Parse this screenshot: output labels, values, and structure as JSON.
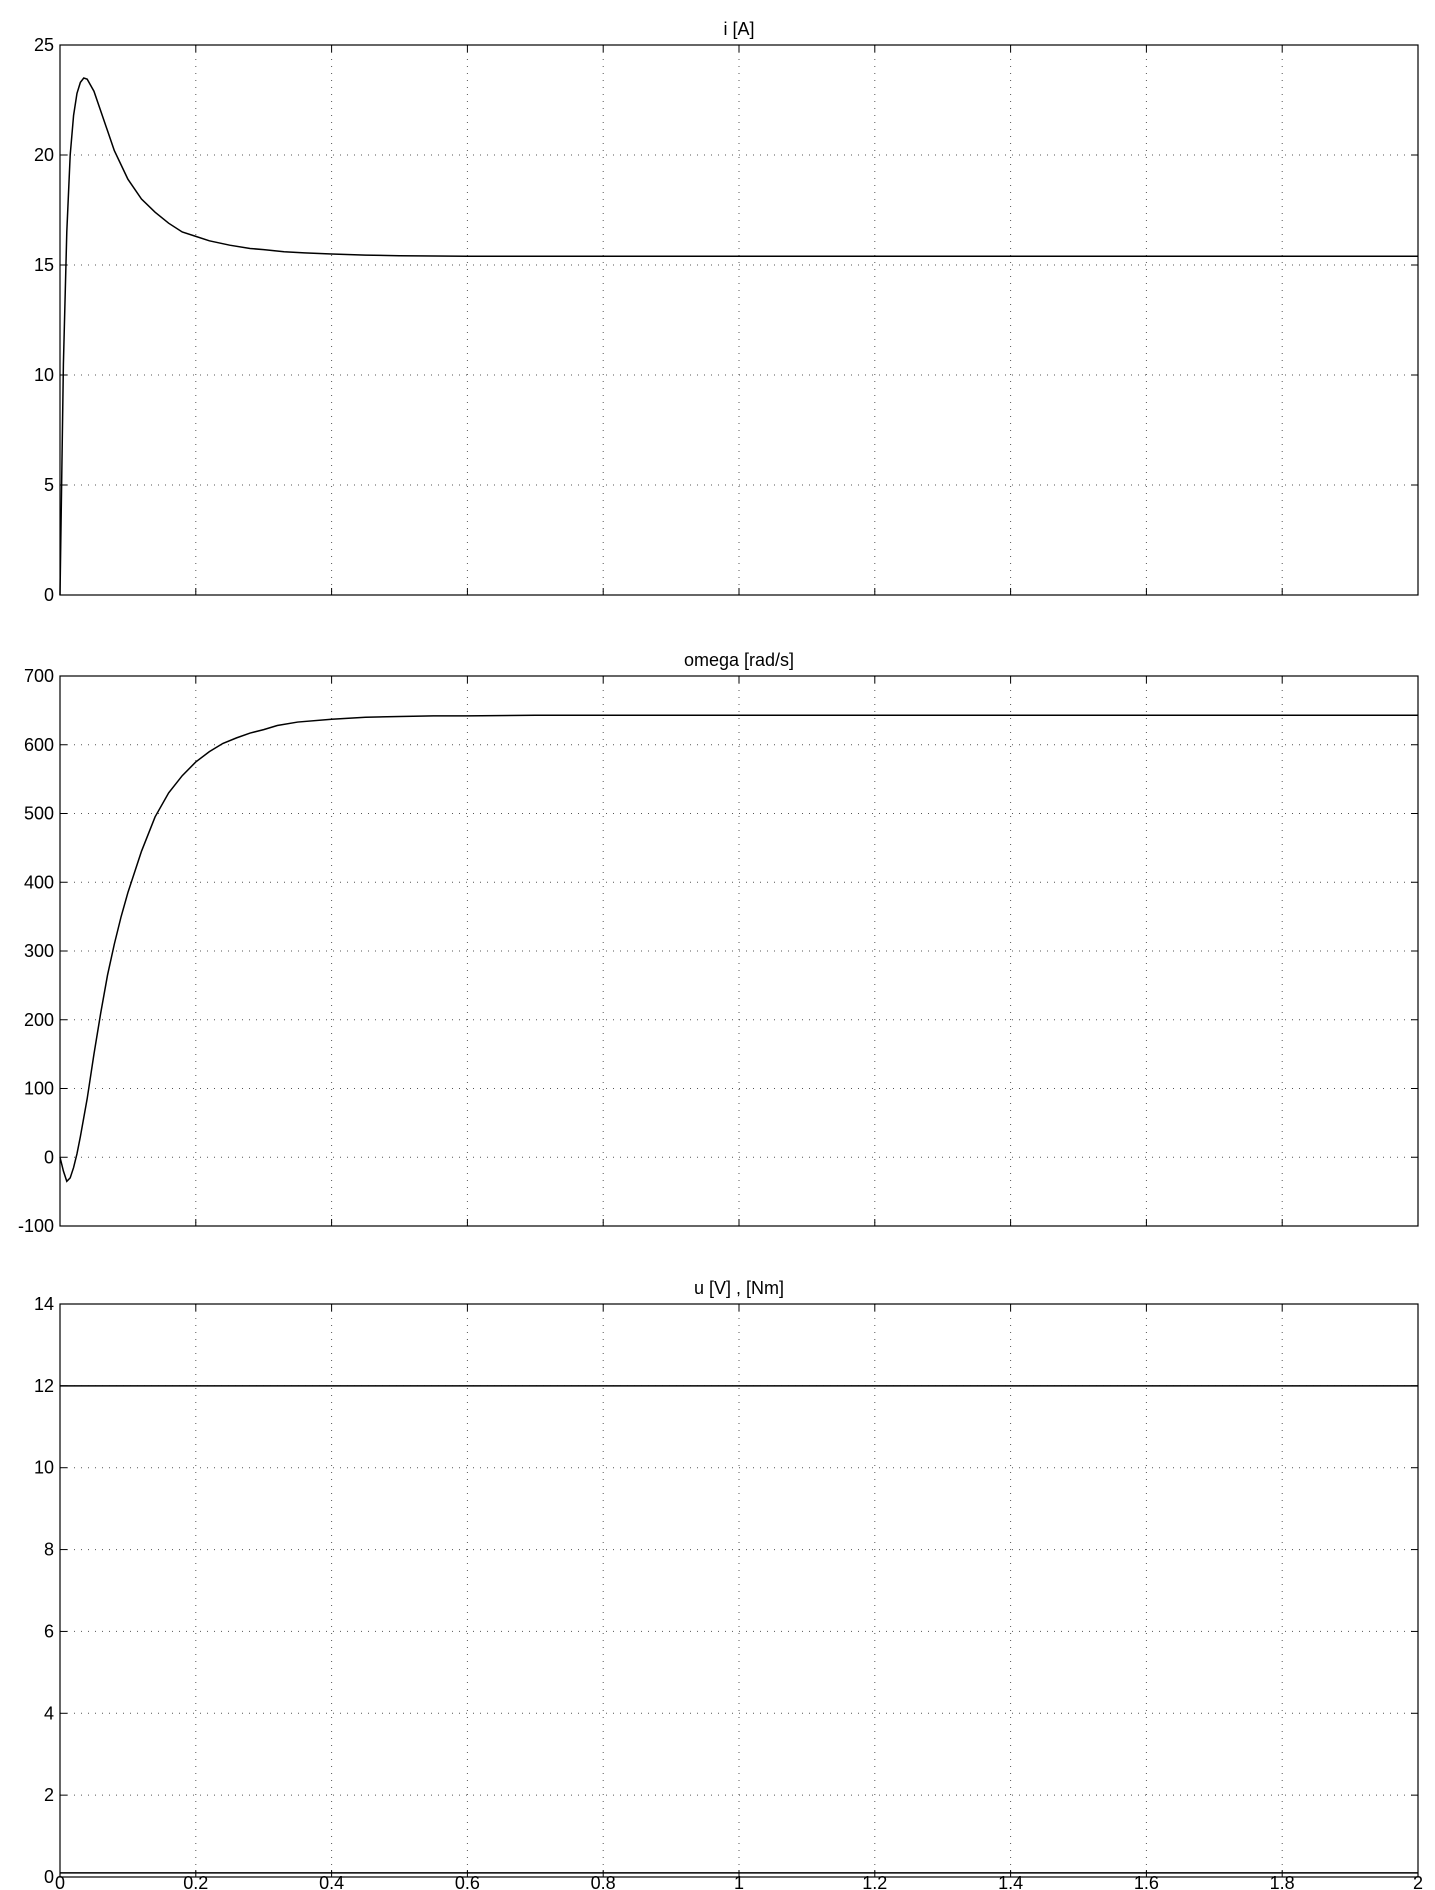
{
  "chart_data": [
    {
      "type": "line",
      "title": "i [A]",
      "xlabel": "",
      "ylabel": "",
      "xlim": [
        0,
        2
      ],
      "ylim": [
        0,
        25
      ],
      "xticks": [
        0,
        0.2,
        0.4,
        0.6,
        0.8,
        1,
        1.2,
        1.4,
        1.6,
        1.8,
        2
      ],
      "yticks": [
        0,
        5,
        10,
        15,
        20,
        25
      ],
      "show_x_tick_labels": false,
      "grid": true,
      "series": [
        {
          "x": [
            0,
            0.005,
            0.01,
            0.015,
            0.02,
            0.025,
            0.03,
            0.035,
            0.04,
            0.05,
            0.06,
            0.07,
            0.08,
            0.1,
            0.12,
            0.14,
            0.16,
            0.18,
            0.2,
            0.22,
            0.25,
            0.28,
            0.3,
            0.33,
            0.36,
            0.4,
            0.45,
            0.5,
            0.55,
            0.6,
            0.7,
            0.8,
            1.0,
            1.2,
            1.4,
            1.6,
            1.8,
            2.0
          ],
          "y": [
            0,
            10.5,
            16.5,
            20.0,
            21.8,
            22.8,
            23.3,
            23.5,
            23.45,
            22.9,
            22.0,
            21.1,
            20.2,
            18.9,
            18.0,
            17.4,
            16.9,
            16.5,
            16.3,
            16.1,
            15.9,
            15.75,
            15.7,
            15.6,
            15.55,
            15.5,
            15.45,
            15.42,
            15.41,
            15.4,
            15.4,
            15.4,
            15.4,
            15.4,
            15.4,
            15.4,
            15.4,
            15.4
          ]
        }
      ]
    },
    {
      "type": "line",
      "title": "omega [rad/s]",
      "xlabel": "",
      "ylabel": "",
      "xlim": [
        0,
        2
      ],
      "ylim": [
        -100,
        700
      ],
      "xticks": [
        0,
        0.2,
        0.4,
        0.6,
        0.8,
        1,
        1.2,
        1.4,
        1.6,
        1.8,
        2
      ],
      "yticks": [
        -100,
        0,
        100,
        200,
        300,
        400,
        500,
        600,
        700
      ],
      "show_x_tick_labels": false,
      "grid": true,
      "series": [
        {
          "x": [
            0,
            0.005,
            0.01,
            0.015,
            0.02,
            0.025,
            0.03,
            0.04,
            0.05,
            0.06,
            0.07,
            0.08,
            0.09,
            0.1,
            0.12,
            0.14,
            0.16,
            0.18,
            0.2,
            0.22,
            0.24,
            0.26,
            0.28,
            0.3,
            0.32,
            0.35,
            0.4,
            0.45,
            0.5,
            0.55,
            0.6,
            0.7,
            0.8,
            1.0,
            1.2,
            1.4,
            1.6,
            1.8,
            2.0
          ],
          "y": [
            0,
            -20,
            -35,
            -30,
            -15,
            5,
            30,
            85,
            150,
            210,
            265,
            310,
            350,
            385,
            445,
            495,
            530,
            555,
            575,
            590,
            602,
            610,
            617,
            622,
            628,
            633,
            637,
            640,
            641,
            642,
            642,
            643,
            643,
            643,
            643,
            643,
            643,
            643,
            643
          ]
        }
      ]
    },
    {
      "type": "line",
      "title": "u [V] , [Nm]",
      "xlabel": "",
      "ylabel": "",
      "xlim": [
        0,
        2
      ],
      "ylim": [
        0,
        14
      ],
      "xticks": [
        0,
        0.2,
        0.4,
        0.6,
        0.8,
        1,
        1.2,
        1.4,
        1.6,
        1.8,
        2
      ],
      "yticks": [
        0,
        2,
        4,
        6,
        8,
        10,
        12,
        14
      ],
      "show_x_tick_labels": true,
      "grid": true,
      "series": [
        {
          "x": [
            0,
            2
          ],
          "y": [
            12,
            12
          ]
        },
        {
          "x": [
            0,
            2
          ],
          "y": [
            0.1,
            0.1
          ]
        }
      ]
    }
  ]
}
